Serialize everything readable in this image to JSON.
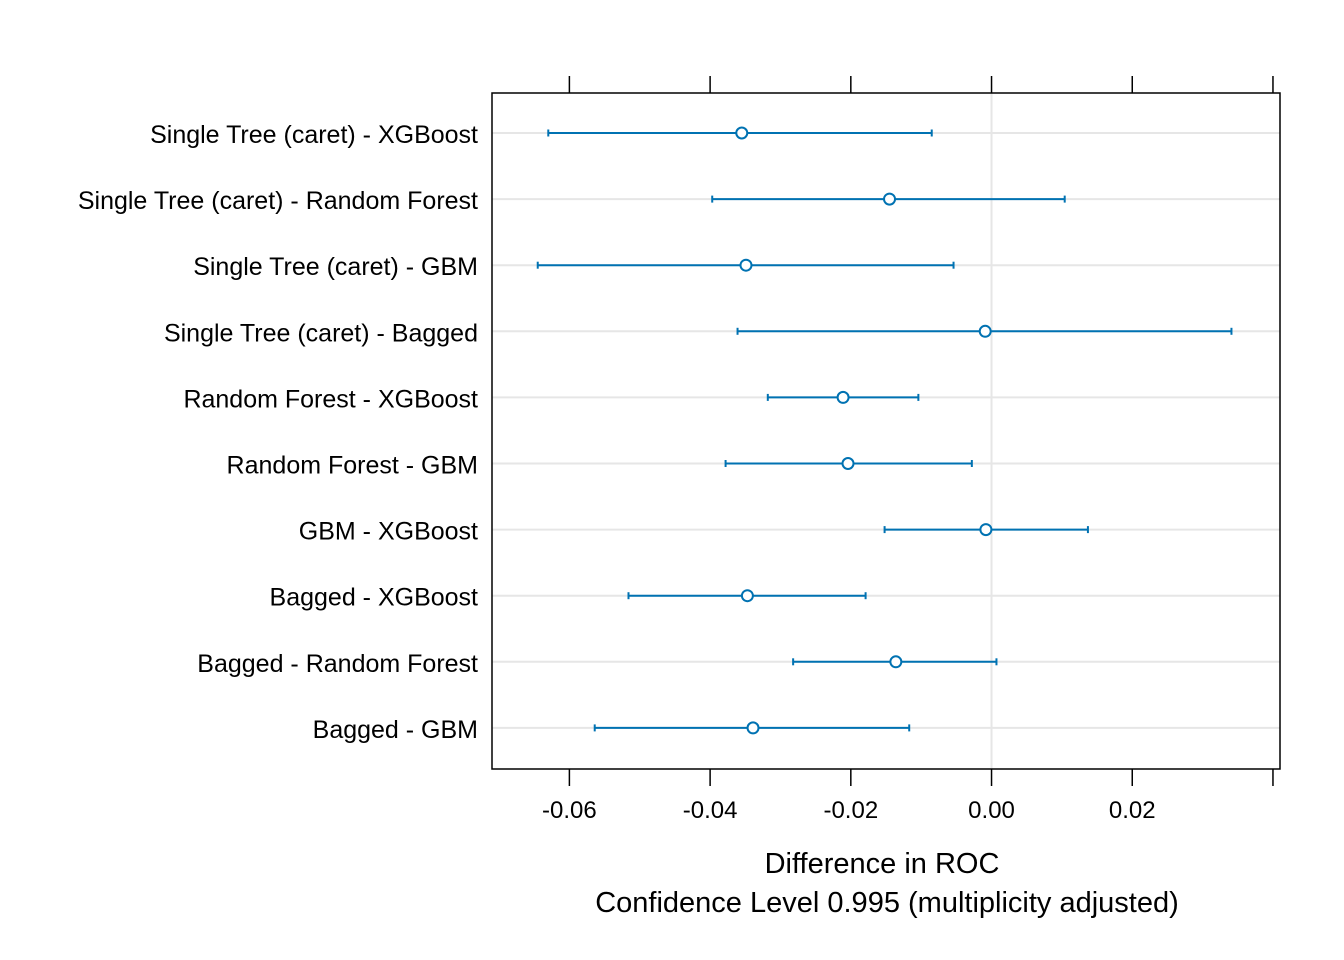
{
  "chart_data": {
    "type": "dotplot-ci",
    "xlabel": "Difference in ROC",
    "subtitle": "Confidence Level 0.995  (multiplicity adjusted)",
    "xlim": [
      -0.071,
      0.041
    ],
    "xticks": [
      -0.06,
      -0.04,
      -0.02,
      0.0,
      0.02,
      0.04
    ],
    "xtick_labels": [
      "-0.06",
      "-0.04",
      "-0.02",
      "0.00",
      "0.02",
      ""
    ],
    "grid": true,
    "reference_line": 0.0,
    "series_color": "#0072B2",
    "grid_color": "#e6e6e6",
    "rows": [
      {
        "label": "Single Tree (caret) - XGBoost",
        "estimate": -0.0355,
        "lower": -0.063,
        "upper": -0.0085
      },
      {
        "label": "Single Tree (caret) - Random Forest",
        "estimate": -0.0145,
        "lower": -0.0397,
        "upper": 0.0104
      },
      {
        "label": "Single Tree (caret) - GBM",
        "estimate": -0.0349,
        "lower": -0.0645,
        "upper": -0.0054
      },
      {
        "label": "Single Tree (caret) - Bagged",
        "estimate": -0.0009,
        "lower": -0.0361,
        "upper": 0.0341
      },
      {
        "label": "Random Forest - XGBoost",
        "estimate": -0.0211,
        "lower": -0.0318,
        "upper": -0.0104
      },
      {
        "label": "Random Forest - GBM",
        "estimate": -0.0204,
        "lower": -0.0378,
        "upper": -0.0028
      },
      {
        "label": "GBM - XGBoost",
        "estimate": -0.0008,
        "lower": -0.0152,
        "upper": 0.0137
      },
      {
        "label": "Bagged - XGBoost",
        "estimate": -0.0347,
        "lower": -0.0516,
        "upper": -0.0179
      },
      {
        "label": "Bagged - Random Forest",
        "estimate": -0.0136,
        "lower": -0.0282,
        "upper": 0.0007
      },
      {
        "label": "Bagged - GBM",
        "estimate": -0.0339,
        "lower": -0.0564,
        "upper": -0.0117
      }
    ]
  }
}
